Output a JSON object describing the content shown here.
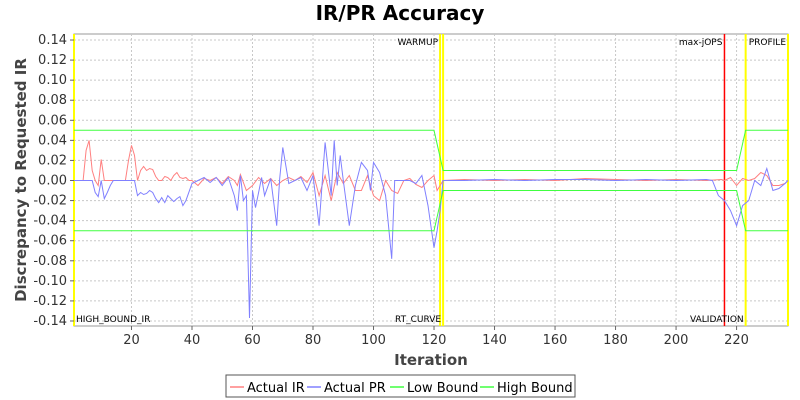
{
  "chart_data": {
    "type": "line",
    "title": "IR/PR Accuracy",
    "xlabel": "Iteration",
    "ylabel": "Discrepancy to Requested IR",
    "xlim": [
      1,
      237
    ],
    "ylim": [
      -0.145,
      0.146
    ],
    "x_ticks": [
      "20",
      "40",
      "60",
      "80",
      "100",
      "120",
      "140",
      "160",
      "180",
      "200",
      "220"
    ],
    "x_tick_values": [
      20,
      40,
      60,
      80,
      100,
      120,
      140,
      160,
      180,
      200,
      220
    ],
    "y_ticks": [
      "0.14",
      "0.12",
      "0.10",
      "0.08",
      "0.06",
      "0.04",
      "0.02",
      "0.00",
      "-0.02",
      "-0.04",
      "-0.06",
      "-0.08",
      "-0.10",
      "-0.12",
      "-0.14"
    ],
    "y_tick_values": [
      0.14,
      0.12,
      0.1,
      0.08,
      0.06,
      0.04,
      0.02,
      0.0,
      -0.02,
      -0.04,
      -0.06,
      -0.08,
      -0.1,
      -0.12,
      -0.14
    ],
    "grid": true,
    "legend_position": "bottom",
    "markers": [
      {
        "name": "WARMUP",
        "x": 122,
        "color": "#ffff00",
        "label_position": "top"
      },
      {
        "name": "max-jOPS",
        "x": 216,
        "color": "#ff0000",
        "label_position": "top"
      },
      {
        "name": "PROFILE",
        "x": 237,
        "color": "#ffff00",
        "label_position": "top"
      },
      {
        "name": "HIGH_BOUND_IR",
        "x": 1,
        "color": "#ffff00",
        "label_position": "bottom"
      },
      {
        "name": "RT_CURVE",
        "x": 123,
        "color": "#ffff00",
        "label_position": "bottom"
      },
      {
        "name": "VALIDATION",
        "x": 223,
        "color": "#ffff00",
        "label_position": "bottom"
      }
    ],
    "series": [
      {
        "name": "Actual IR",
        "color": "#ff8080",
        "points": [
          [
            1,
            0
          ],
          [
            2,
            0
          ],
          [
            3,
            0
          ],
          [
            4,
            0
          ],
          [
            5,
            0.03
          ],
          [
            6,
            0.04
          ],
          [
            7,
            0.01
          ],
          [
            8,
            0
          ],
          [
            9,
            -0.005
          ],
          [
            10,
            0.021
          ],
          [
            11,
            0
          ],
          [
            12,
            0
          ],
          [
            13,
            0
          ],
          [
            14,
            0
          ],
          [
            15,
            0
          ],
          [
            16,
            0
          ],
          [
            17,
            0
          ],
          [
            18,
            0
          ],
          [
            19,
            0.02
          ],
          [
            20,
            0.035
          ],
          [
            21,
            0.025
          ],
          [
            22,
            0
          ],
          [
            23,
            0.01
          ],
          [
            24,
            0.014
          ],
          [
            25,
            0.01
          ],
          [
            26,
            0.012
          ],
          [
            27,
            0.011
          ],
          [
            28,
            0.004
          ],
          [
            29,
            0
          ],
          [
            30,
            0
          ],
          [
            31,
            0.004
          ],
          [
            32,
            0.003
          ],
          [
            33,
            0
          ],
          [
            34,
            0.005
          ],
          [
            35,
            0.008
          ],
          [
            36,
            0.003
          ],
          [
            37,
            0.002
          ],
          [
            38,
            0.003
          ],
          [
            39,
            0
          ],
          [
            40,
            0
          ],
          [
            42,
            -0.005
          ],
          [
            44,
            0.002
          ],
          [
            46,
            0
          ],
          [
            48,
            0.003
          ],
          [
            50,
            -0.003
          ],
          [
            52,
            0.004
          ],
          [
            54,
            0
          ],
          [
            55,
            -0.005
          ],
          [
            56,
            0.006
          ],
          [
            58,
            -0.01
          ],
          [
            60,
            -0.005
          ],
          [
            62,
            0.003
          ],
          [
            64,
            -0.003
          ],
          [
            66,
            0.002
          ],
          [
            68,
            -0.005
          ],
          [
            70,
            0
          ],
          [
            72,
            0.003
          ],
          [
            74,
            0
          ],
          [
            76,
            0.004
          ],
          [
            78,
            -0.002
          ],
          [
            80,
            0.008
          ],
          [
            82,
            -0.015
          ],
          [
            84,
            0.005
          ],
          [
            86,
            -0.02
          ],
          [
            88,
            0.008
          ],
          [
            90,
            -0.003
          ],
          [
            92,
            0.005
          ],
          [
            94,
            -0.01
          ],
          [
            96,
            -0.01
          ],
          [
            98,
            0.005
          ],
          [
            100,
            -0.015
          ],
          [
            102,
            -0.02
          ],
          [
            104,
            0
          ],
          [
            106,
            -0.01
          ],
          [
            108,
            -0.013
          ],
          [
            110,
            0
          ],
          [
            112,
            0.002
          ],
          [
            114,
            -0.004
          ],
          [
            116,
            -0.007
          ],
          [
            118,
            0
          ],
          [
            120,
            0.005
          ],
          [
            121,
            -0.01
          ],
          [
            122,
            -0.005
          ],
          [
            123,
            0
          ],
          [
            130,
            0.001
          ],
          [
            140,
            0
          ],
          [
            150,
            0.001
          ],
          [
            160,
            0
          ],
          [
            170,
            0.002
          ],
          [
            180,
            0.001
          ],
          [
            190,
            0
          ],
          [
            200,
            0.001
          ],
          [
            210,
            0
          ],
          [
            215,
            0.001
          ],
          [
            216,
            0
          ],
          [
            218,
            0.003
          ],
          [
            220,
            -0.005
          ],
          [
            222,
            0.002
          ],
          [
            224,
            0
          ],
          [
            226,
            0.002
          ],
          [
            228,
            0.008
          ],
          [
            230,
            0.005
          ],
          [
            232,
            -0.005
          ],
          [
            234,
            -0.005
          ],
          [
            236,
            -0.003
          ],
          [
            237,
            0
          ]
        ]
      },
      {
        "name": "Actual PR",
        "color": "#8080ff",
        "points": [
          [
            1,
            0
          ],
          [
            2,
            0
          ],
          [
            3,
            0
          ],
          [
            4,
            0
          ],
          [
            5,
            0
          ],
          [
            6,
            0
          ],
          [
            7,
            0
          ],
          [
            8,
            -0.012
          ],
          [
            9,
            -0.016
          ],
          [
            10,
            0
          ],
          [
            11,
            -0.018
          ],
          [
            12,
            -0.012
          ],
          [
            13,
            -0.005
          ],
          [
            14,
            0
          ],
          [
            15,
            0
          ],
          [
            16,
            0
          ],
          [
            17,
            0
          ],
          [
            18,
            0
          ],
          [
            19,
            0
          ],
          [
            20,
            0
          ],
          [
            21,
            0
          ],
          [
            22,
            -0.015
          ],
          [
            23,
            -0.012
          ],
          [
            24,
            -0.014
          ],
          [
            25,
            -0.013
          ],
          [
            26,
            -0.01
          ],
          [
            27,
            -0.012
          ],
          [
            28,
            -0.018
          ],
          [
            29,
            -0.022
          ],
          [
            30,
            -0.017
          ],
          [
            31,
            -0.022
          ],
          [
            32,
            -0.015
          ],
          [
            33,
            -0.018
          ],
          [
            34,
            -0.021
          ],
          [
            35,
            -0.018
          ],
          [
            36,
            -0.016
          ],
          [
            37,
            -0.025
          ],
          [
            38,
            -0.02
          ],
          [
            40,
            -0.003
          ],
          [
            42,
            0
          ],
          [
            44,
            0.003
          ],
          [
            46,
            -0.002
          ],
          [
            48,
            0.003
          ],
          [
            50,
            -0.005
          ],
          [
            52,
            0.003
          ],
          [
            54,
            -0.015
          ],
          [
            55,
            -0.03
          ],
          [
            56,
            0.005
          ],
          [
            57,
            -0.02
          ],
          [
            58,
            -0.015
          ],
          [
            59,
            -0.137
          ],
          [
            60,
            -0.01
          ],
          [
            61,
            -0.027
          ],
          [
            62,
            -0.012
          ],
          [
            63,
            0.003
          ],
          [
            64,
            -0.015
          ],
          [
            66,
            0.002
          ],
          [
            68,
            -0.045
          ],
          [
            69,
            0.002
          ],
          [
            70,
            0.033
          ],
          [
            72,
            -0.003
          ],
          [
            74,
            0
          ],
          [
            76,
            0.003
          ],
          [
            78,
            -0.01
          ],
          [
            80,
            0.005
          ],
          [
            82,
            -0.045
          ],
          [
            84,
            0.038
          ],
          [
            86,
            -0.015
          ],
          [
            87,
            0.04
          ],
          [
            88,
            -0.005
          ],
          [
            89,
            0.025
          ],
          [
            90,
            0
          ],
          [
            92,
            -0.045
          ],
          [
            94,
            -0.005
          ],
          [
            96,
            0.018
          ],
          [
            98,
            0.01
          ],
          [
            99,
            -0.01
          ],
          [
            100,
            0.018
          ],
          [
            102,
            0.008
          ],
          [
            104,
            -0.015
          ],
          [
            106,
            -0.078
          ],
          [
            107,
            0
          ],
          [
            108,
            0
          ],
          [
            110,
            0
          ],
          [
            112,
            0
          ],
          [
            114,
            -0.003
          ],
          [
            116,
            0.005
          ],
          [
            118,
            -0.025
          ],
          [
            120,
            -0.067
          ],
          [
            121,
            -0.05
          ],
          [
            122,
            -0.03
          ],
          [
            123,
            0
          ],
          [
            130,
            0
          ],
          [
            140,
            0.001
          ],
          [
            150,
            0
          ],
          [
            160,
            0.001
          ],
          [
            170,
            0.001
          ],
          [
            180,
            0
          ],
          [
            190,
            0.001
          ],
          [
            200,
            0
          ],
          [
            210,
            0.001
          ],
          [
            212,
            0
          ],
          [
            214,
            -0.015
          ],
          [
            216,
            -0.02
          ],
          [
            218,
            -0.03
          ],
          [
            220,
            -0.045
          ],
          [
            222,
            -0.025
          ],
          [
            224,
            -0.02
          ],
          [
            226,
            0
          ],
          [
            228,
            -0.005
          ],
          [
            230,
            0.012
          ],
          [
            232,
            -0.01
          ],
          [
            234,
            -0.008
          ],
          [
            236,
            -0.003
          ],
          [
            237,
            0
          ]
        ]
      },
      {
        "name": "Low Bound",
        "color": "#40ff40",
        "points": [
          [
            1,
            -0.05
          ],
          [
            120,
            -0.05
          ],
          [
            123,
            -0.01
          ],
          [
            220,
            -0.01
          ],
          [
            223,
            -0.05
          ],
          [
            237,
            -0.05
          ]
        ]
      },
      {
        "name": "High Bound",
        "color": "#40ff40",
        "points": [
          [
            1,
            0.05
          ],
          [
            120,
            0.05
          ],
          [
            123,
            0.01
          ],
          [
            220,
            0.01
          ],
          [
            223,
            0.05
          ],
          [
            237,
            0.05
          ]
        ]
      }
    ]
  }
}
